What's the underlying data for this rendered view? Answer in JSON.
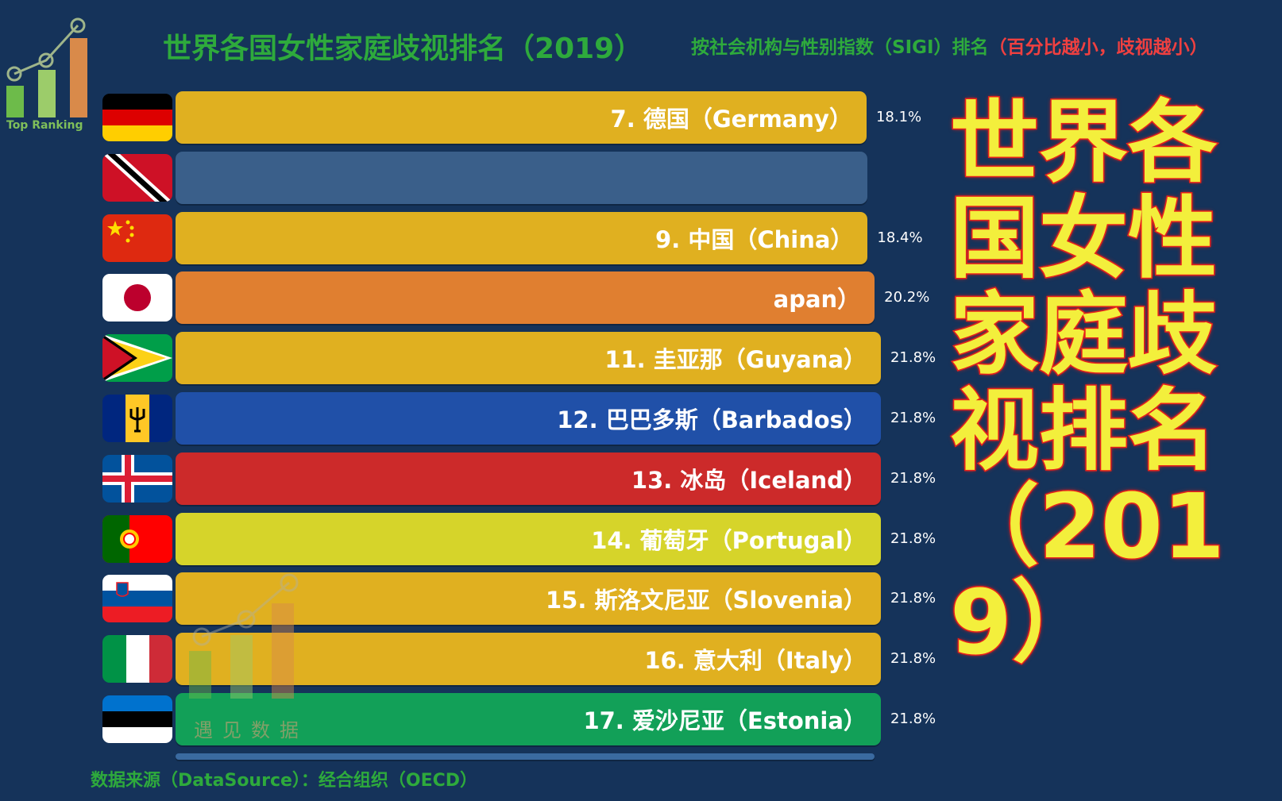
{
  "header": {
    "title": "世界各国女性家庭歧视排名（2019）",
    "subtitle_main": "按社会机构与性别指数（SIGI）排名",
    "subtitle_note": "（百分比越小，歧视越小）",
    "logo_text": "Top Ranking"
  },
  "overlay": {
    "line1": "世界各国女性家庭歧视排名",
    "line2": "（2019）"
  },
  "colors": {
    "background": "#15335a",
    "title_green": "#2eaa3c",
    "note_red": "#f04040",
    "overlay_yellow": "#f3ef3c",
    "overlay_red": "#e8221c"
  },
  "chart_data": {
    "type": "bar",
    "orientation": "horizontal",
    "rows": [
      {
        "label": "7. 德国（Germany）",
        "value": 18.1,
        "value_label": "18.1%",
        "flag": "germany",
        "color": "#e0b020"
      },
      {
        "label": "",
        "value": null,
        "value_label": "",
        "flag": "trinidad-and-tobago",
        "color": "#3a5f8a"
      },
      {
        "label": "9. 中国（China）",
        "value": 18.4,
        "value_label": "18.4%",
        "flag": "china",
        "color": "#e0b020"
      },
      {
        "label": "apan）",
        "value": 20.2,
        "value_label": "20.2%",
        "flag": "japan",
        "color": "#e07f30"
      },
      {
        "label": "11. 圭亚那（Guyana）",
        "value": 21.8,
        "value_label": "21.8%",
        "flag": "guyana",
        "color": "#e0b020"
      },
      {
        "label": "12. 巴巴多斯（Barbados）",
        "value": 21.8,
        "value_label": "21.8%",
        "flag": "barbados",
        "color": "#2050a8"
      },
      {
        "label": "13. 冰岛（Iceland）",
        "value": 21.8,
        "value_label": "21.8%",
        "flag": "iceland",
        "color": "#cc2a2a"
      },
      {
        "label": "14. 葡萄牙（Portugal）",
        "value": 21.8,
        "value_label": "21.8%",
        "flag": "portugal",
        "color": "#d6d42a"
      },
      {
        "label": "15. 斯洛文尼亚（Slovenia）",
        "value": 21.8,
        "value_label": "21.8%",
        "flag": "slovenia",
        "color": "#e0b020"
      },
      {
        "label": "16. 意大利（Italy）",
        "value": 21.8,
        "value_label": "21.8%",
        "flag": "italy",
        "color": "#e0b020"
      },
      {
        "label": "17. 爱沙尼亚（Estonia）",
        "value": 21.8,
        "value_label": "21.8%",
        "flag": "estonia",
        "color": "#12a058"
      }
    ]
  },
  "watermark": {
    "text": "遇见数据"
  },
  "footer": {
    "source": "数据来源（DataSource）：经合组织（OECD）"
  }
}
